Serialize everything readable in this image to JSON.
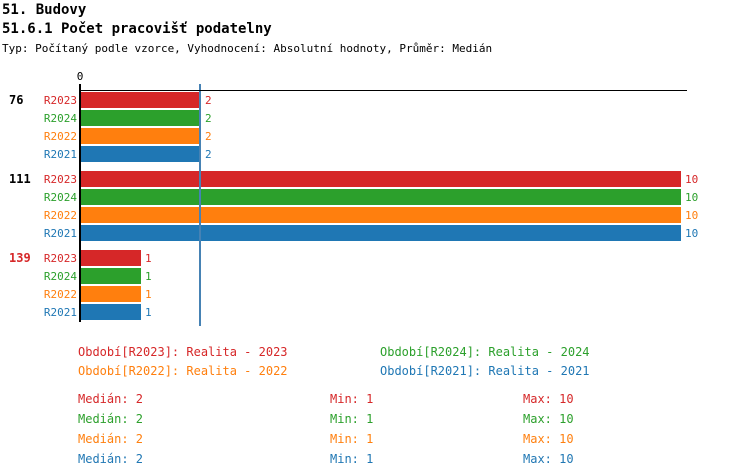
{
  "header": {
    "title": "51. Budovy",
    "subtitle": "51.6.1 Počet pracovišť podatelny",
    "meta": "Typ: Počítaný podle vzorce, Vyhodnocení: Absolutní hodnoty, Průměr: Medián"
  },
  "colors": {
    "R2023": "#d62728",
    "R2024": "#2ca02c",
    "R2022": "#ff7f0e",
    "R2021": "#1f77b4",
    "median_line": "#4682b4",
    "axis": "#000000",
    "group_label_default": "#000000",
    "group_label_highlight": "#d62728"
  },
  "chart_data": {
    "type": "bar",
    "orientation": "horizontal",
    "title": "51.6.1 Počet pracovišť podatelny",
    "xlim": [
      0,
      10
    ],
    "origin_tick_label": "0",
    "median_value": 2,
    "grid": false,
    "series_order": [
      "R2023",
      "R2024",
      "R2022",
      "R2021"
    ],
    "groups": [
      {
        "label": "76",
        "highlighted": false,
        "values": [
          2,
          2,
          2,
          2
        ]
      },
      {
        "label": "111",
        "highlighted": false,
        "values": [
          10,
          10,
          10,
          10
        ]
      },
      {
        "label": "139",
        "highlighted": true,
        "values": [
          1,
          1,
          1,
          1
        ]
      }
    ]
  },
  "legend": {
    "items": [
      {
        "label": "Období[R2023]: Realita - 2023",
        "series": "R2023"
      },
      {
        "label": "Období[R2024]: Realita - 2024",
        "series": "R2024"
      },
      {
        "label": "Období[R2022]: Realita - 2022",
        "series": "R2022"
      },
      {
        "label": "Období[R2021]: Realita - 2021",
        "series": "R2021"
      }
    ]
  },
  "stats": {
    "labels": {
      "median": "Medián",
      "min": "Min",
      "max": "Max"
    },
    "rows": [
      {
        "series": "R2023",
        "median": 2,
        "min": 1,
        "max": 10
      },
      {
        "series": "R2024",
        "median": 2,
        "min": 1,
        "max": 10
      },
      {
        "series": "R2022",
        "median": 2,
        "min": 1,
        "max": 10
      },
      {
        "series": "R2021",
        "median": 2,
        "min": 1,
        "max": 10
      }
    ]
  }
}
